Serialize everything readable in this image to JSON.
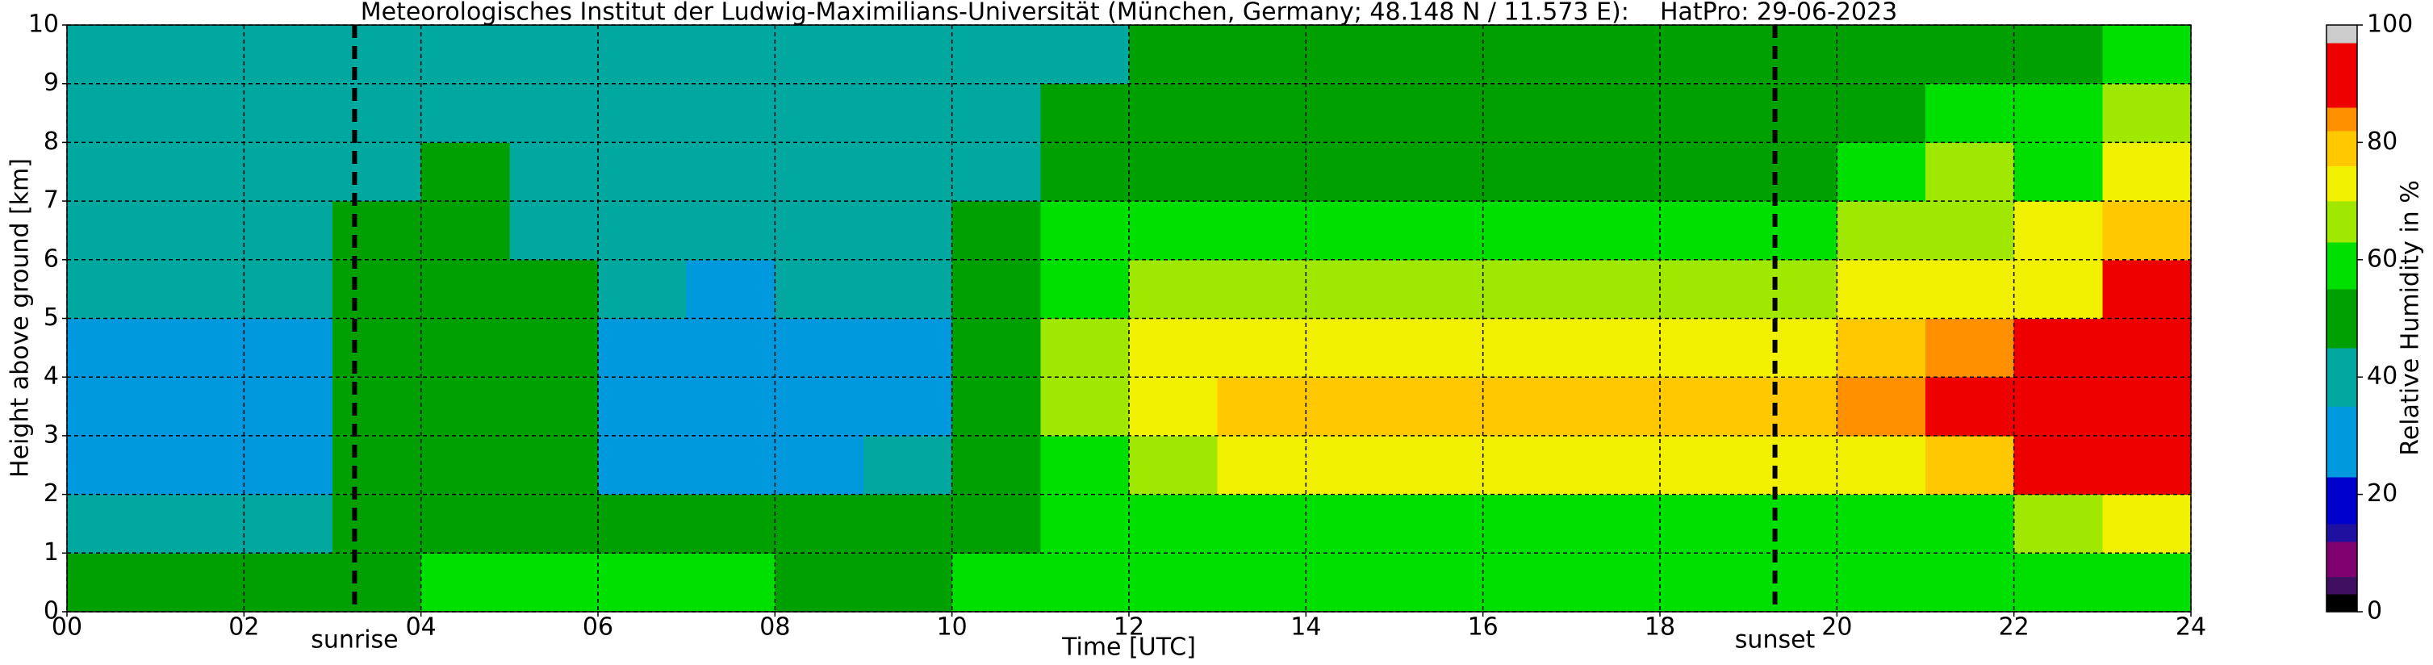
{
  "chart_data": {
    "type": "heatmap",
    "title": "Meteorologisches Institut der Ludwig-Maximilians-Universität (München, Germany; 48.148 N / 11.573 E):    HatPro: 29-06-2023",
    "x_label": "Time [UTC]",
    "y_label": "Height above ground [km]",
    "colorbar_label": "Relative Humidity in %",
    "x": [
      0.5,
      1.5,
      2.5,
      3.5,
      4.5,
      5.5,
      6.5,
      7.5,
      8.5,
      9.5,
      10.5,
      11.5,
      12.5,
      13.5,
      14.5,
      15.5,
      16.5,
      17.5,
      18.5,
      19.5,
      20.5,
      21.5,
      22.5,
      23.5
    ],
    "y": [
      0.5,
      1.5,
      2.5,
      3.5,
      4.5,
      5.5,
      6.5,
      7.5,
      8.5,
      9.5
    ],
    "z": [
      [
        48,
        48,
        48,
        52,
        55,
        55,
        56,
        56,
        50,
        48,
        55,
        60,
        60,
        60,
        60,
        60,
        60,
        60,
        60,
        60,
        58,
        56,
        56,
        55
      ],
      [
        44,
        44,
        44,
        50,
        52,
        52,
        50,
        48,
        48,
        48,
        52,
        60,
        62,
        62,
        62,
        62,
        62,
        62,
        62,
        62,
        62,
        62,
        64,
        70
      ],
      [
        30,
        30,
        30,
        45,
        48,
        46,
        30,
        30,
        32,
        38,
        50,
        62,
        65,
        70,
        70,
        70,
        70,
        70,
        70,
        72,
        75,
        80,
        88,
        90
      ],
      [
        30,
        30,
        30,
        45,
        48,
        46,
        30,
        28,
        30,
        34,
        48,
        68,
        72,
        77,
        77,
        77,
        77,
        77,
        77,
        78,
        82,
        86,
        90,
        90
      ],
      [
        32,
        32,
        32,
        45,
        48,
        46,
        32,
        30,
        32,
        34,
        48,
        66,
        72,
        72,
        72,
        72,
        72,
        72,
        72,
        72,
        78,
        82,
        86,
        92
      ],
      [
        38,
        38,
        38,
        45,
        48,
        45,
        35,
        34,
        35,
        37,
        46,
        62,
        66,
        64,
        64,
        64,
        64,
        64,
        64,
        65,
        70,
        72,
        75,
        90
      ],
      [
        40,
        40,
        40,
        45,
        48,
        44,
        38,
        38,
        38,
        40,
        45,
        56,
        58,
        55,
        55,
        55,
        55,
        55,
        55,
        55,
        65,
        68,
        70,
        80
      ],
      [
        40,
        40,
        40,
        44,
        46,
        42,
        40,
        40,
        40,
        40,
        44,
        48,
        50,
        48,
        48,
        48,
        48,
        48,
        48,
        48,
        60,
        64,
        62,
        75
      ],
      [
        40,
        40,
        40,
        42,
        42,
        40,
        40,
        40,
        40,
        40,
        42,
        45,
        47,
        47,
        47,
        47,
        47,
        47,
        47,
        47,
        52,
        55,
        55,
        65
      ],
      [
        40,
        40,
        40,
        40,
        40,
        40,
        40,
        40,
        40,
        40,
        40,
        42,
        45,
        47,
        47,
        47,
        47,
        47,
        47,
        45,
        45,
        48,
        48,
        55
      ]
    ],
    "xlim": [
      0,
      24
    ],
    "ylim": [
      0,
      10
    ],
    "zlim": [
      0,
      100
    ],
    "xticks": [
      {
        "value": 0,
        "label": "00"
      },
      {
        "value": 2,
        "label": "02"
      },
      {
        "value": 4,
        "label": "04"
      },
      {
        "value": 6,
        "label": "06"
      },
      {
        "value": 8,
        "label": "08"
      },
      10,
      12,
      14,
      16,
      18,
      20,
      22,
      24
    ],
    "yticks": [
      0,
      1,
      2,
      3,
      4,
      5,
      6,
      7,
      8,
      9,
      10
    ],
    "zticks": [
      0,
      20,
      40,
      60,
      80,
      100
    ],
    "grid": true,
    "colorscale": [
      {
        "value": 0,
        "color": "#000000"
      },
      {
        "value": 3,
        "color": "#401060"
      },
      {
        "value": 6,
        "color": "#800070"
      },
      {
        "value": 12,
        "color": "#2010a0"
      },
      {
        "value": 15,
        "color": "#0000cc"
      },
      {
        "value": 23,
        "color": "#0099dd"
      },
      {
        "value": 35,
        "color": "#00a8a0"
      },
      {
        "value": 45,
        "color": "#00a000"
      },
      {
        "value": 55,
        "color": "#00e000"
      },
      {
        "value": 63,
        "color": "#a0e800"
      },
      {
        "value": 70,
        "color": "#f0f000"
      },
      {
        "value": 76,
        "color": "#ffc800"
      },
      {
        "value": 82,
        "color": "#ff9000"
      },
      {
        "value": 86,
        "color": "#ee0000"
      },
      {
        "value": 97,
        "color": "#cccccc"
      }
    ],
    "annotations": [
      {
        "label": "sunrise",
        "x": 3.25
      },
      {
        "label": "sunset",
        "x": 19.3
      }
    ]
  }
}
